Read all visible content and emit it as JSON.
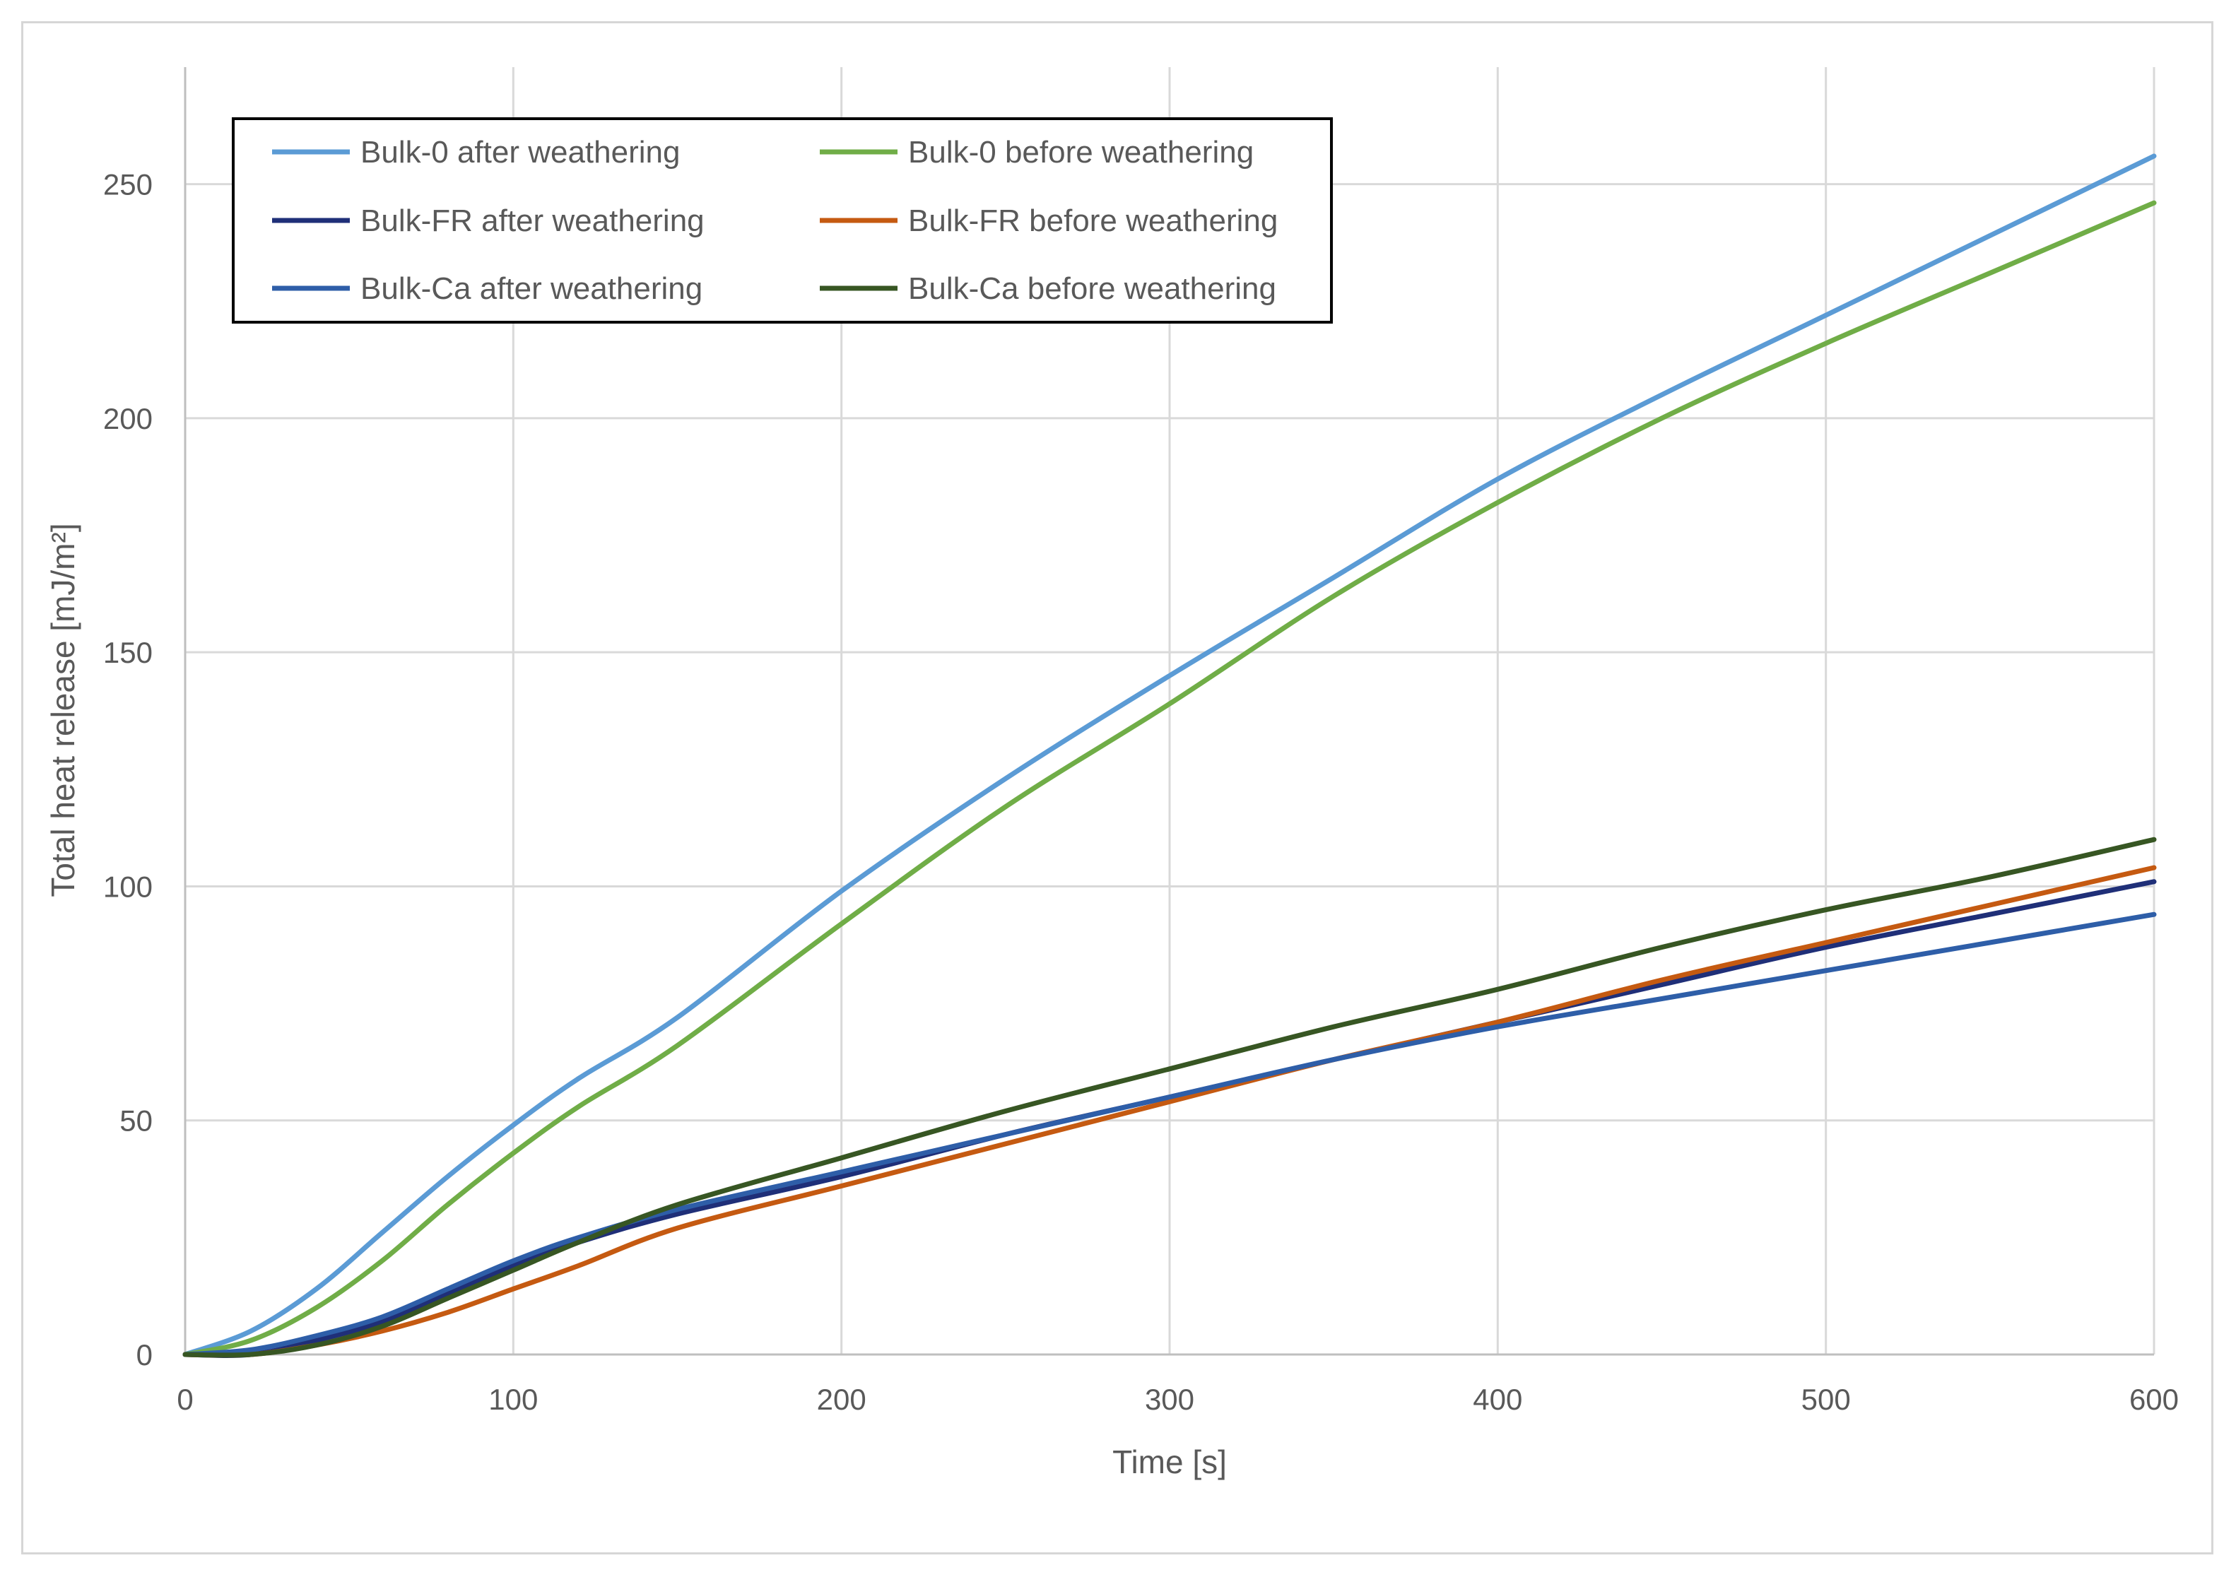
{
  "chart_data": {
    "type": "line",
    "title": "",
    "xlabel": "Time [s]",
    "ylabel": "Total heat release [mJ/m²]",
    "xlim": [
      0,
      600
    ],
    "ylim": [
      0,
      275
    ],
    "x_ticks": [
      "0",
      "100",
      "200",
      "300",
      "400",
      "500",
      "600"
    ],
    "y_ticks": [
      "0",
      "50",
      "100",
      "150",
      "200",
      "250"
    ],
    "grid": true,
    "legend_position": "top-left",
    "series": [
      {
        "name": "Bulk-0 after weathering",
        "color": "#5b9bd5",
        "points": [
          [
            0,
            0
          ],
          [
            20,
            5
          ],
          [
            40,
            14
          ],
          [
            60,
            26
          ],
          [
            80,
            38
          ],
          [
            100,
            49
          ],
          [
            120,
            59
          ],
          [
            150,
            72
          ],
          [
            200,
            99
          ],
          [
            250,
            123
          ],
          [
            300,
            145
          ],
          [
            350,
            166
          ],
          [
            400,
            187
          ],
          [
            450,
            205
          ],
          [
            500,
            222
          ],
          [
            550,
            239
          ],
          [
            600,
            256
          ]
        ]
      },
      {
        "name": "Bulk-0 before weathering",
        "color": "#70ad47",
        "points": [
          [
            0,
            0
          ],
          [
            20,
            3
          ],
          [
            40,
            10
          ],
          [
            60,
            20
          ],
          [
            80,
            32
          ],
          [
            100,
            43
          ],
          [
            120,
            53
          ],
          [
            150,
            66
          ],
          [
            200,
            92
          ],
          [
            250,
            117
          ],
          [
            300,
            139
          ],
          [
            350,
            162
          ],
          [
            400,
            182
          ],
          [
            450,
            200
          ],
          [
            500,
            216
          ],
          [
            550,
            231
          ],
          [
            600,
            246
          ]
        ]
      },
      {
        "name": "Bulk-FR after weathering",
        "color": "#1f2f78",
        "points": [
          [
            0,
            0
          ],
          [
            20,
            0
          ],
          [
            40,
            3
          ],
          [
            60,
            7
          ],
          [
            80,
            13
          ],
          [
            100,
            19
          ],
          [
            120,
            24
          ],
          [
            150,
            30
          ],
          [
            200,
            38
          ],
          [
            250,
            47
          ],
          [
            300,
            55
          ],
          [
            350,
            63
          ],
          [
            400,
            71
          ],
          [
            450,
            79
          ],
          [
            500,
            87
          ],
          [
            550,
            94
          ],
          [
            600,
            101
          ]
        ]
      },
      {
        "name": "Bulk-FR before weathering",
        "color": "#c55a11",
        "points": [
          [
            0,
            0
          ],
          [
            20,
            0
          ],
          [
            40,
            2
          ],
          [
            60,
            5
          ],
          [
            80,
            9
          ],
          [
            100,
            14
          ],
          [
            120,
            19
          ],
          [
            150,
            27
          ],
          [
            200,
            36
          ],
          [
            250,
            45
          ],
          [
            300,
            54
          ],
          [
            350,
            63
          ],
          [
            400,
            71
          ],
          [
            450,
            80
          ],
          [
            500,
            88
          ],
          [
            550,
            96
          ],
          [
            600,
            104
          ]
        ]
      },
      {
        "name": "Bulk-Ca after weathering",
        "color": "#2e5ea8",
        "points": [
          [
            0,
            0
          ],
          [
            20,
            1
          ],
          [
            40,
            4
          ],
          [
            60,
            8
          ],
          [
            80,
            14
          ],
          [
            100,
            20
          ],
          [
            120,
            25
          ],
          [
            150,
            31
          ],
          [
            200,
            39
          ],
          [
            250,
            47
          ],
          [
            300,
            55
          ],
          [
            350,
            63
          ],
          [
            400,
            70
          ],
          [
            450,
            76
          ],
          [
            500,
            82
          ],
          [
            550,
            88
          ],
          [
            600,
            94
          ]
        ]
      },
      {
        "name": "Bulk-Ca before weathering",
        "color": "#375623",
        "points": [
          [
            0,
            0
          ],
          [
            20,
            0
          ],
          [
            40,
            2
          ],
          [
            60,
            6
          ],
          [
            80,
            12
          ],
          [
            100,
            18
          ],
          [
            120,
            24
          ],
          [
            150,
            32
          ],
          [
            200,
            42
          ],
          [
            250,
            52
          ],
          [
            300,
            61
          ],
          [
            350,
            70
          ],
          [
            400,
            78
          ],
          [
            450,
            87
          ],
          [
            500,
            95
          ],
          [
            550,
            102
          ],
          [
            600,
            110
          ]
        ]
      }
    ]
  }
}
